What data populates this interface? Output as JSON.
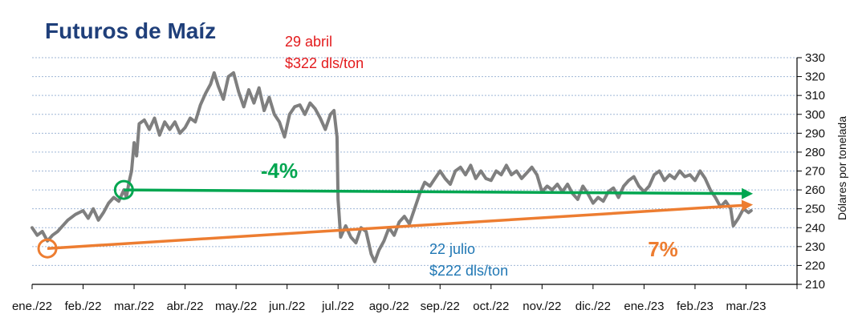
{
  "chart_data": {
    "type": "line",
    "title": "Futuros de Maíz",
    "ylabel": "Dólares por tonelada",
    "xlabel": "",
    "ylim": [
      210,
      330
    ],
    "yticks": [
      210,
      220,
      230,
      240,
      250,
      260,
      270,
      280,
      290,
      300,
      310,
      320,
      330
    ],
    "grid": true,
    "x_categories": [
      "ene./22",
      "feb./22",
      "mar./22",
      "abr./22",
      "may./22",
      "jun./22",
      "jul./22",
      "ago./22",
      "sep./22",
      "oct./22",
      "nov./22",
      "dic./22",
      "ene./23",
      "feb./23",
      "mar./23"
    ],
    "series": [
      {
        "color": "#7f7f7f",
        "points": [
          [
            0.0,
            240
          ],
          [
            0.1,
            236
          ],
          [
            0.2,
            238
          ],
          [
            0.3,
            233
          ],
          [
            0.4,
            236
          ],
          [
            0.5,
            238
          ],
          [
            0.6,
            241
          ],
          [
            0.7,
            244
          ],
          [
            0.85,
            247
          ],
          [
            1.0,
            249
          ],
          [
            1.1,
            245
          ],
          [
            1.2,
            250
          ],
          [
            1.3,
            244
          ],
          [
            1.4,
            248
          ],
          [
            1.5,
            253
          ],
          [
            1.6,
            256
          ],
          [
            1.7,
            254
          ],
          [
            1.8,
            260
          ],
          [
            1.85,
            256
          ],
          [
            1.9,
            264
          ],
          [
            1.95,
            270
          ],
          [
            2.0,
            285
          ],
          [
            2.05,
            278
          ],
          [
            2.1,
            295
          ],
          [
            2.2,
            297
          ],
          [
            2.3,
            292
          ],
          [
            2.4,
            298
          ],
          [
            2.5,
            289
          ],
          [
            2.6,
            296
          ],
          [
            2.7,
            292
          ],
          [
            2.8,
            296
          ],
          [
            2.9,
            290
          ],
          [
            3.0,
            293
          ],
          [
            3.1,
            298
          ],
          [
            3.2,
            296
          ],
          [
            3.3,
            305
          ],
          [
            3.4,
            311
          ],
          [
            3.5,
            316
          ],
          [
            3.57,
            322
          ],
          [
            3.65,
            315
          ],
          [
            3.75,
            308
          ],
          [
            3.85,
            320
          ],
          [
            3.95,
            322
          ],
          [
            4.05,
            312
          ],
          [
            4.15,
            304
          ],
          [
            4.25,
            313
          ],
          [
            4.35,
            306
          ],
          [
            4.45,
            314
          ],
          [
            4.55,
            302
          ],
          [
            4.65,
            309
          ],
          [
            4.75,
            300
          ],
          [
            4.85,
            296
          ],
          [
            4.95,
            288
          ],
          [
            5.05,
            300
          ],
          [
            5.15,
            304
          ],
          [
            5.25,
            305
          ],
          [
            5.35,
            300
          ],
          [
            5.45,
            306
          ],
          [
            5.55,
            303
          ],
          [
            5.65,
            298
          ],
          [
            5.75,
            292
          ],
          [
            5.85,
            300
          ],
          [
            5.92,
            302
          ],
          [
            5.98,
            288
          ],
          [
            6.0,
            255
          ],
          [
            6.05,
            235
          ],
          [
            6.15,
            241
          ],
          [
            6.25,
            235
          ],
          [
            6.35,
            232
          ],
          [
            6.45,
            240
          ],
          [
            6.55,
            238
          ],
          [
            6.65,
            226
          ],
          [
            6.72,
            222
          ],
          [
            6.8,
            228
          ],
          [
            6.9,
            233
          ],
          [
            7.0,
            240
          ],
          [
            7.1,
            236
          ],
          [
            7.2,
            243
          ],
          [
            7.3,
            246
          ],
          [
            7.4,
            242
          ],
          [
            7.5,
            250
          ],
          [
            7.6,
            258
          ],
          [
            7.7,
            264
          ],
          [
            7.8,
            262
          ],
          [
            7.9,
            266
          ],
          [
            8.0,
            270
          ],
          [
            8.1,
            266
          ],
          [
            8.2,
            263
          ],
          [
            8.3,
            270
          ],
          [
            8.4,
            272
          ],
          [
            8.5,
            268
          ],
          [
            8.6,
            273
          ],
          [
            8.7,
            266
          ],
          [
            8.8,
            270
          ],
          [
            8.9,
            266
          ],
          [
            9.0,
            265
          ],
          [
            9.1,
            270
          ],
          [
            9.2,
            268
          ],
          [
            9.3,
            273
          ],
          [
            9.4,
            268
          ],
          [
            9.5,
            270
          ],
          [
            9.6,
            266
          ],
          [
            9.7,
            269
          ],
          [
            9.8,
            272
          ],
          [
            9.9,
            268
          ],
          [
            10.0,
            259
          ],
          [
            10.1,
            262
          ],
          [
            10.2,
            260
          ],
          [
            10.3,
            263
          ],
          [
            10.4,
            259
          ],
          [
            10.5,
            263
          ],
          [
            10.6,
            258
          ],
          [
            10.7,
            255
          ],
          [
            10.8,
            262
          ],
          [
            10.9,
            258
          ],
          [
            11.0,
            253
          ],
          [
            11.1,
            256
          ],
          [
            11.2,
            254
          ],
          [
            11.3,
            259
          ],
          [
            11.4,
            261
          ],
          [
            11.5,
            256
          ],
          [
            11.6,
            262
          ],
          [
            11.7,
            265
          ],
          [
            11.8,
            267
          ],
          [
            11.9,
            262
          ],
          [
            12.0,
            259
          ],
          [
            12.1,
            262
          ],
          [
            12.2,
            268
          ],
          [
            12.3,
            270
          ],
          [
            12.4,
            265
          ],
          [
            12.5,
            268
          ],
          [
            12.6,
            266
          ],
          [
            12.7,
            270
          ],
          [
            12.8,
            267
          ],
          [
            12.9,
            268
          ],
          [
            13.0,
            265
          ],
          [
            13.1,
            270
          ],
          [
            13.2,
            266
          ],
          [
            13.3,
            260
          ],
          [
            13.4,
            256
          ],
          [
            13.5,
            251
          ],
          [
            13.6,
            254
          ],
          [
            13.7,
            250
          ],
          [
            13.75,
            241
          ],
          [
            13.85,
            245
          ],
          [
            13.95,
            250
          ],
          [
            14.05,
            248
          ],
          [
            14.1,
            249
          ]
        ]
      }
    ],
    "trend_lines": [
      {
        "color": "#00a650",
        "label": "-4%",
        "from": [
          1.8,
          260
        ],
        "to": [
          14.1,
          258
        ]
      },
      {
        "color": "#ed7d31",
        "label": "7%",
        "from": [
          0.3,
          229
        ],
        "to": [
          14.1,
          252
        ]
      }
    ],
    "markers": [
      {
        "color": "#00a650",
        "at": [
          1.8,
          260
        ]
      },
      {
        "color": "#ed7d31",
        "at": [
          0.3,
          229
        ]
      }
    ],
    "annotations": [
      {
        "lines": [
          "29 abril",
          "$322 dls/ton"
        ],
        "color": "#e31a1c"
      },
      {
        "lines": [
          "22 julio",
          "$222 dls/ton"
        ],
        "color": "#1f77b4"
      }
    ]
  }
}
